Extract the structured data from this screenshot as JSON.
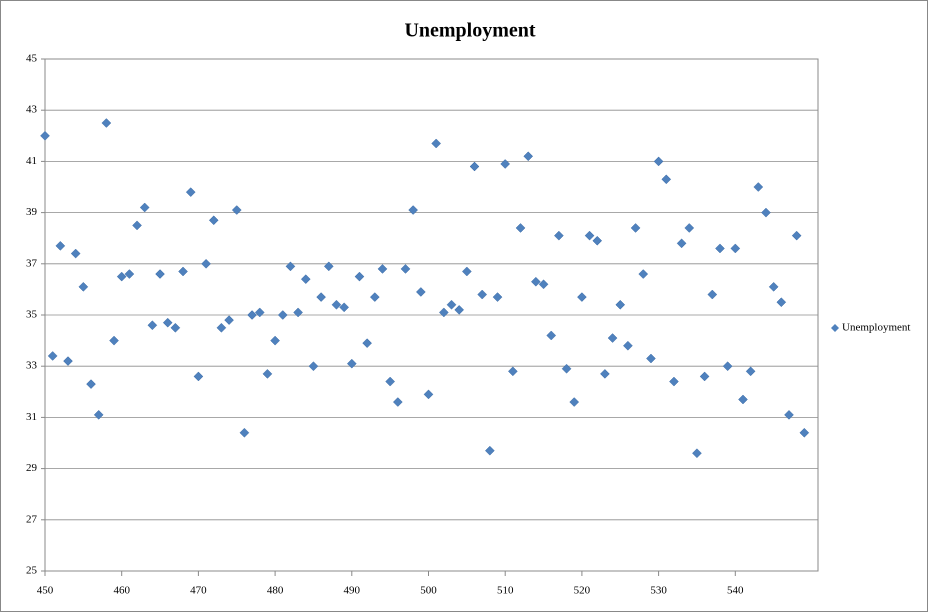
{
  "chart_data": {
    "type": "scatter",
    "title": "Unemployment",
    "x": [
      450,
      451,
      452,
      453,
      454,
      455,
      456,
      457,
      458,
      459,
      460,
      461,
      462,
      463,
      464,
      465,
      466,
      467,
      468,
      469,
      470,
      471,
      472,
      473,
      474,
      475,
      476,
      477,
      478,
      479,
      480,
      481,
      482,
      483,
      484,
      485,
      486,
      487,
      488,
      489,
      490,
      491,
      492,
      493,
      494,
      495,
      496,
      497,
      498,
      499,
      500,
      501,
      502,
      503,
      504,
      505,
      506,
      507,
      508,
      509,
      510,
      511,
      512,
      513,
      514,
      515,
      516,
      517,
      518,
      519,
      520,
      521,
      522,
      523,
      524,
      525,
      526,
      527,
      528,
      529,
      530,
      531,
      532,
      533,
      534,
      535,
      536,
      537,
      538,
      539,
      540,
      541,
      542,
      543,
      544,
      545,
      546,
      547,
      548,
      549
    ],
    "series": [
      {
        "name": "Unemployment",
        "color": "#4f81bd",
        "values": [
          42.0,
          33.4,
          37.7,
          33.2,
          37.4,
          36.1,
          32.3,
          31.1,
          42.5,
          34.0,
          36.5,
          36.6,
          38.5,
          39.2,
          34.6,
          36.6,
          34.7,
          34.5,
          36.7,
          39.8,
          32.6,
          37.0,
          38.7,
          34.5,
          34.8,
          39.1,
          30.4,
          35.0,
          35.1,
          32.7,
          34.0,
          35.0,
          36.9,
          35.1,
          36.4,
          33.0,
          35.7,
          36.9,
          35.4,
          35.3,
          33.1,
          36.5,
          33.9,
          35.7,
          36.8,
          32.4,
          31.6,
          36.8,
          39.1,
          35.9,
          31.9,
          41.7,
          35.1,
          35.4,
          35.2,
          36.7,
          40.8,
          35.8,
          29.7,
          35.7,
          40.9,
          32.8,
          38.4,
          41.2,
          36.3,
          36.2,
          34.2,
          38.1,
          32.9,
          31.6,
          35.7,
          38.1,
          37.9,
          32.7,
          34.1,
          35.4,
          33.8,
          38.4,
          36.6,
          33.3,
          41.0,
          40.3,
          32.4,
          37.8,
          38.4,
          29.6,
          32.6,
          35.8,
          37.6,
          33.0,
          37.6,
          31.7,
          32.8,
          40.0,
          39.0,
          36.1,
          35.5,
          31.1,
          38.1,
          30.4
        ]
      }
    ],
    "xlim": [
      450,
      550
    ],
    "xticks": [
      450,
      460,
      470,
      480,
      490,
      500,
      510,
      520,
      530,
      540
    ],
    "ylim": [
      25,
      45
    ],
    "yticks": [
      25,
      27,
      29,
      31,
      33,
      35,
      37,
      39,
      41,
      43,
      45
    ],
    "grid": true,
    "legend": "right"
  }
}
